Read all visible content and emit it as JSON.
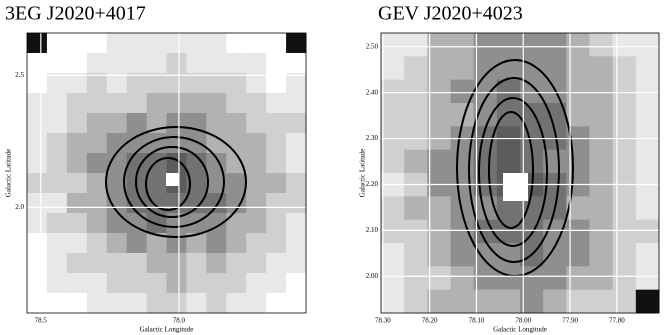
{
  "chart_data": [
    {
      "type": "image",
      "title": "3EG J2020+4017",
      "xlabel": "Galactic Longitude",
      "ylabel": "Galactic Latitude",
      "xlim": [
        78.55,
        77.54
      ],
      "ylim": [
        1.6,
        2.66
      ],
      "xticks": [
        78.5,
        {
          "value": 78,
          "label": "78.0"
        }
      ],
      "yticks": [
        {
          "value": 2,
          "label": "2.0"
        },
        2.5
      ],
      "grid": true
    },
    {
      "type": "image",
      "title": "GEV J2020+4023",
      "xlabel": "Galactic Longitude",
      "ylabel": "Galactic Latitude",
      "xlim": [
        78.304,
        77.71
      ],
      "ylim": [
        1.92,
        2.53
      ],
      "xticks": [
        {
          "value": 78.3,
          "label": "78.30"
        },
        {
          "value": 78.2,
          "label": "78.20"
        },
        {
          "value": 78.1,
          "label": "78.10"
        },
        {
          "value": 78,
          "label": "78.00"
        },
        {
          "value": 77.9,
          "label": "77.90"
        },
        {
          "value": 77.8,
          "label": "77.80"
        }
      ],
      "yticks": [
        {
          "value": 2,
          "label": "2.00"
        },
        {
          "value": 2.1,
          "label": "2.10"
        },
        {
          "value": 2.2,
          "label": "2.20"
        },
        {
          "value": 2.3,
          "label": "2.30"
        },
        {
          "value": 2.4,
          "label": "2.40"
        },
        {
          "value": 2.5,
          "label": "2.50"
        }
      ],
      "grid": true
    }
  ]
}
